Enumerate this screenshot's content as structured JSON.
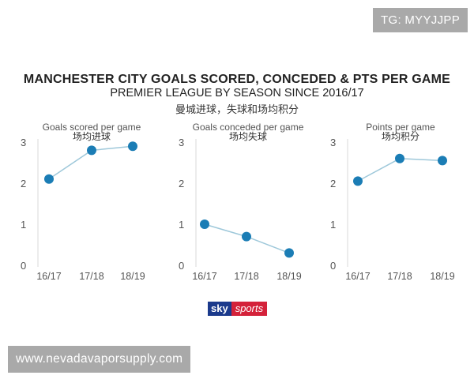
{
  "badge": "TG: MYYJJPP",
  "title": "MANCHESTER CITY GOALS SCORED, CONCEDED & PTS PER GAME",
  "subtitle": "PREMIER LEAGUE BY SEASON SINCE 2016/17",
  "subtitle_cn": "曼城进球，失球和场均积分",
  "logo": {
    "sky": "sky",
    "sports": "sports"
  },
  "watermark": "www.nevadavaporsupply.com",
  "colors": {
    "line": "#9ec8da",
    "point": "#1b7db5",
    "axis": "#d9d9d9",
    "text": "#555555"
  },
  "chart_data": [
    {
      "type": "line",
      "title": "Goals scored per game",
      "title_cn": "场均进球",
      "categories": [
        "16/17",
        "17/18",
        "18/19"
      ],
      "values": [
        2.1,
        2.8,
        2.9
      ],
      "yticks": [
        "0",
        "1",
        "2",
        "3"
      ],
      "ylim": [
        0,
        3
      ],
      "grid": false
    },
    {
      "type": "line",
      "title": "Goals conceded per game",
      "title_cn": "场均失球",
      "categories": [
        "16/17",
        "17/18",
        "18/19"
      ],
      "values": [
        1.0,
        0.7,
        0.3
      ],
      "yticks": [
        "0",
        "1",
        "2",
        "3"
      ],
      "ylim": [
        0,
        3
      ],
      "grid": false
    },
    {
      "type": "line",
      "title": "Points per game",
      "title_cn": "场均积分",
      "categories": [
        "16/17",
        "17/18",
        "18/19"
      ],
      "values": [
        2.05,
        2.6,
        2.55
      ],
      "yticks": [
        "0",
        "1",
        "2",
        "3"
      ],
      "ylim": [
        0,
        3
      ],
      "grid": false
    }
  ]
}
